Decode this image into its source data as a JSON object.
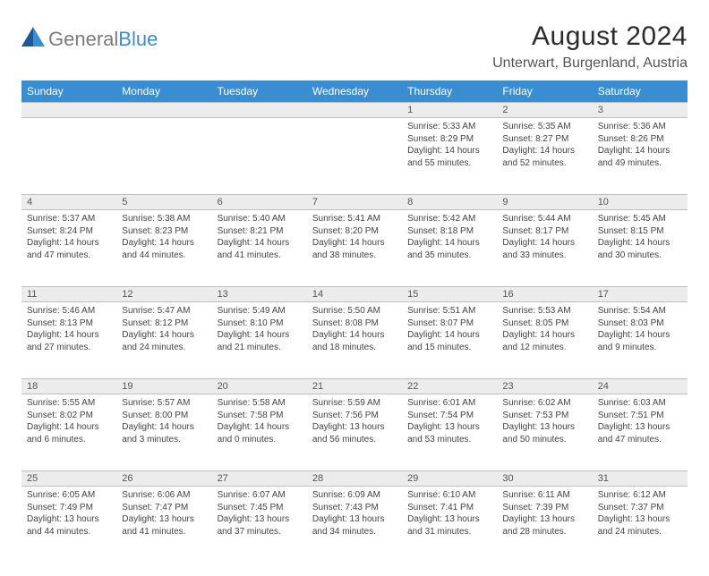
{
  "brand": {
    "word1": "General",
    "word2": "Blue"
  },
  "title": "August 2024",
  "location": "Unterwart, Burgenland, Austria",
  "colors": {
    "header_bg": "#3a8ecf",
    "header_fg": "#ffffff",
    "daynum_bg": "#ececec",
    "border": "#bfbfbf",
    "text": "#333333",
    "logo_gray": "#7a7a7a",
    "logo_blue": "#3a8ecf"
  },
  "weekdays": [
    "Sunday",
    "Monday",
    "Tuesday",
    "Wednesday",
    "Thursday",
    "Friday",
    "Saturday"
  ],
  "weeks": [
    [
      null,
      null,
      null,
      null,
      {
        "n": "1",
        "sr": "5:33 AM",
        "ss": "8:29 PM",
        "dl": "14 hours and 55 minutes."
      },
      {
        "n": "2",
        "sr": "5:35 AM",
        "ss": "8:27 PM",
        "dl": "14 hours and 52 minutes."
      },
      {
        "n": "3",
        "sr": "5:36 AM",
        "ss": "8:26 PM",
        "dl": "14 hours and 49 minutes."
      }
    ],
    [
      {
        "n": "4",
        "sr": "5:37 AM",
        "ss": "8:24 PM",
        "dl": "14 hours and 47 minutes."
      },
      {
        "n": "5",
        "sr": "5:38 AM",
        "ss": "8:23 PM",
        "dl": "14 hours and 44 minutes."
      },
      {
        "n": "6",
        "sr": "5:40 AM",
        "ss": "8:21 PM",
        "dl": "14 hours and 41 minutes."
      },
      {
        "n": "7",
        "sr": "5:41 AM",
        "ss": "8:20 PM",
        "dl": "14 hours and 38 minutes."
      },
      {
        "n": "8",
        "sr": "5:42 AM",
        "ss": "8:18 PM",
        "dl": "14 hours and 35 minutes."
      },
      {
        "n": "9",
        "sr": "5:44 AM",
        "ss": "8:17 PM",
        "dl": "14 hours and 33 minutes."
      },
      {
        "n": "10",
        "sr": "5:45 AM",
        "ss": "8:15 PM",
        "dl": "14 hours and 30 minutes."
      }
    ],
    [
      {
        "n": "11",
        "sr": "5:46 AM",
        "ss": "8:13 PM",
        "dl": "14 hours and 27 minutes."
      },
      {
        "n": "12",
        "sr": "5:47 AM",
        "ss": "8:12 PM",
        "dl": "14 hours and 24 minutes."
      },
      {
        "n": "13",
        "sr": "5:49 AM",
        "ss": "8:10 PM",
        "dl": "14 hours and 21 minutes."
      },
      {
        "n": "14",
        "sr": "5:50 AM",
        "ss": "8:08 PM",
        "dl": "14 hours and 18 minutes."
      },
      {
        "n": "15",
        "sr": "5:51 AM",
        "ss": "8:07 PM",
        "dl": "14 hours and 15 minutes."
      },
      {
        "n": "16",
        "sr": "5:53 AM",
        "ss": "8:05 PM",
        "dl": "14 hours and 12 minutes."
      },
      {
        "n": "17",
        "sr": "5:54 AM",
        "ss": "8:03 PM",
        "dl": "14 hours and 9 minutes."
      }
    ],
    [
      {
        "n": "18",
        "sr": "5:55 AM",
        "ss": "8:02 PM",
        "dl": "14 hours and 6 minutes."
      },
      {
        "n": "19",
        "sr": "5:57 AM",
        "ss": "8:00 PM",
        "dl": "14 hours and 3 minutes."
      },
      {
        "n": "20",
        "sr": "5:58 AM",
        "ss": "7:58 PM",
        "dl": "14 hours and 0 minutes."
      },
      {
        "n": "21",
        "sr": "5:59 AM",
        "ss": "7:56 PM",
        "dl": "13 hours and 56 minutes."
      },
      {
        "n": "22",
        "sr": "6:01 AM",
        "ss": "7:54 PM",
        "dl": "13 hours and 53 minutes."
      },
      {
        "n": "23",
        "sr": "6:02 AM",
        "ss": "7:53 PM",
        "dl": "13 hours and 50 minutes."
      },
      {
        "n": "24",
        "sr": "6:03 AM",
        "ss": "7:51 PM",
        "dl": "13 hours and 47 minutes."
      }
    ],
    [
      {
        "n": "25",
        "sr": "6:05 AM",
        "ss": "7:49 PM",
        "dl": "13 hours and 44 minutes."
      },
      {
        "n": "26",
        "sr": "6:06 AM",
        "ss": "7:47 PM",
        "dl": "13 hours and 41 minutes."
      },
      {
        "n": "27",
        "sr": "6:07 AM",
        "ss": "7:45 PM",
        "dl": "13 hours and 37 minutes."
      },
      {
        "n": "28",
        "sr": "6:09 AM",
        "ss": "7:43 PM",
        "dl": "13 hours and 34 minutes."
      },
      {
        "n": "29",
        "sr": "6:10 AM",
        "ss": "7:41 PM",
        "dl": "13 hours and 31 minutes."
      },
      {
        "n": "30",
        "sr": "6:11 AM",
        "ss": "7:39 PM",
        "dl": "13 hours and 28 minutes."
      },
      {
        "n": "31",
        "sr": "6:12 AM",
        "ss": "7:37 PM",
        "dl": "13 hours and 24 minutes."
      }
    ]
  ],
  "labels": {
    "sunrise": "Sunrise: ",
    "sunset": "Sunset: ",
    "daylight": "Daylight: "
  }
}
